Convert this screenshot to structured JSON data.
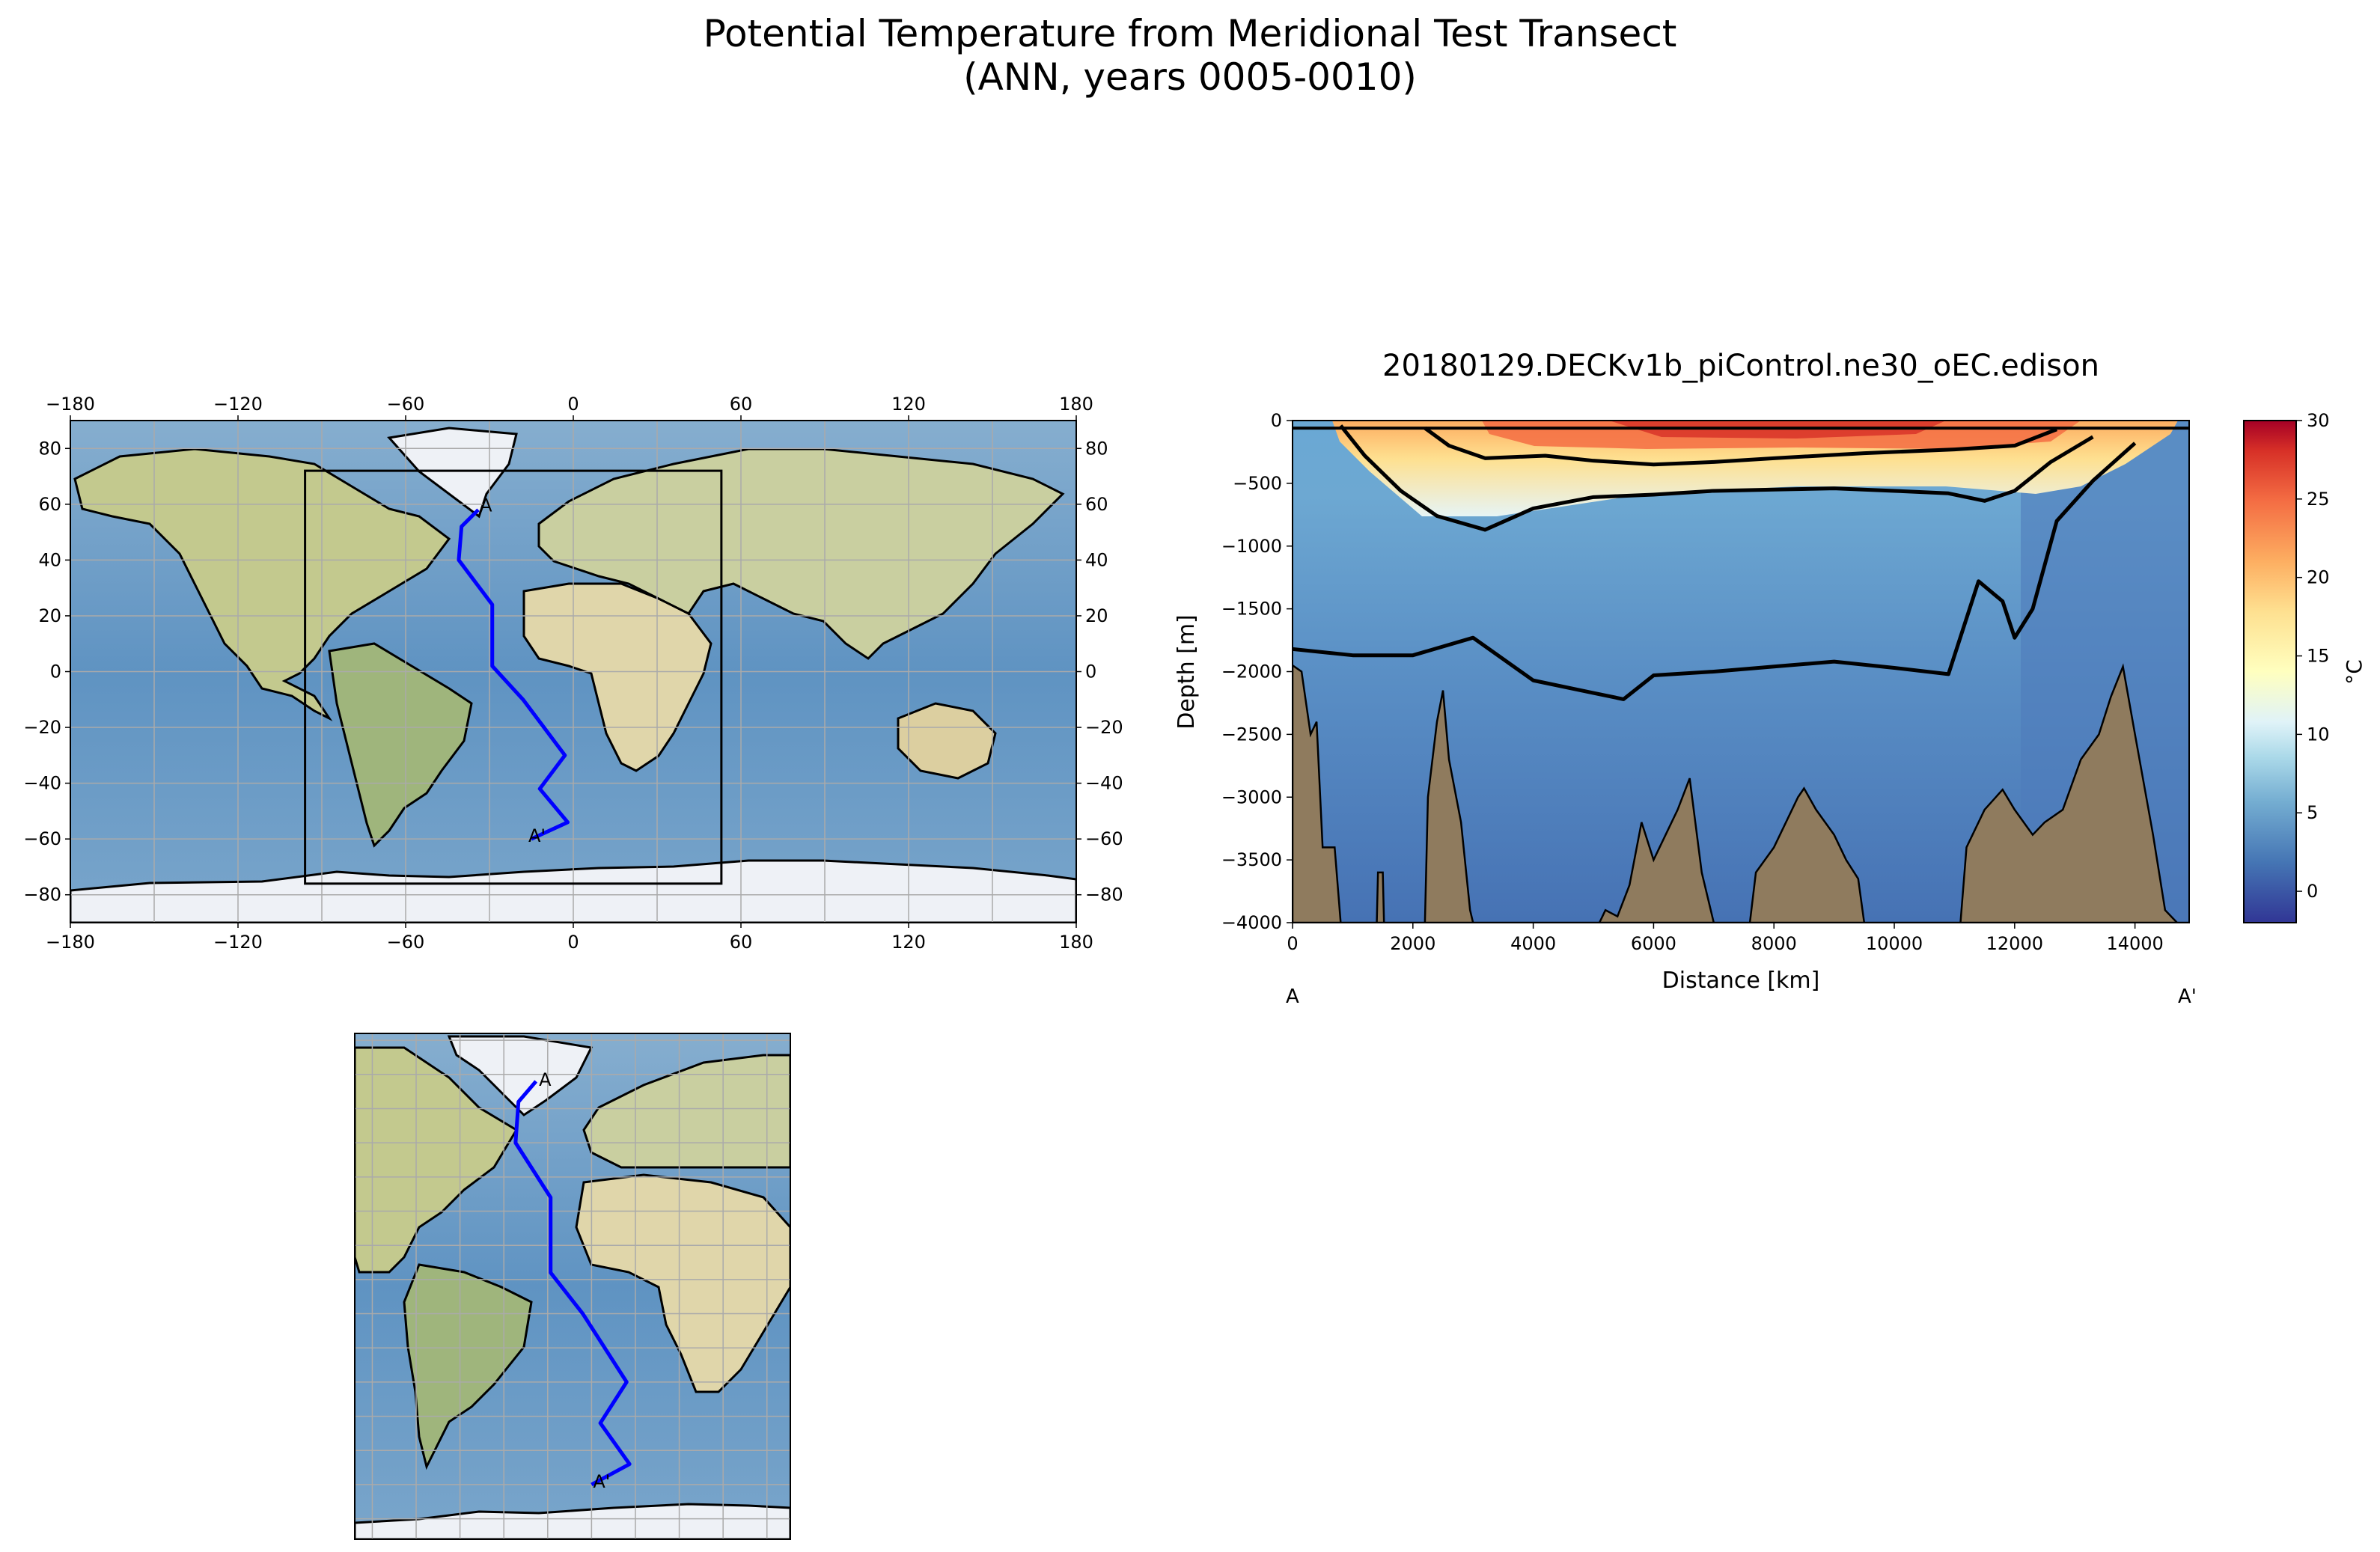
{
  "figure": {
    "title_line1": "Potential Temperature from Meridional Test Transect",
    "title_line2": "(ANN, years 0005-0010)"
  },
  "colors": {
    "ocean": "#6a9ac4",
    "ocean_light": "#a9c9e0",
    "land": "#c9cfa0",
    "land_green": "#9bb37a",
    "land_desert": "#e4d8ae",
    "ice": "#eef1f6",
    "transect": "#0000ff",
    "terrain": "#8f7b5e",
    "grid": "#aaaaaa",
    "contour": "#000000"
  },
  "chart_data": [
    {
      "type": "map",
      "name": "global-map",
      "projection": "PlateCarree",
      "xticks": [
        "−180",
        "−120",
        "−60",
        "0",
        "60",
        "120",
        "180"
      ],
      "yticks": [
        "80",
        "60",
        "40",
        "20",
        "0",
        "−20",
        "−40",
        "−60",
        "−80"
      ],
      "xlim": [
        -180,
        180
      ],
      "ylim": [
        -90,
        90
      ],
      "inset_box": {
        "lon": [
          -96,
          53
        ],
        "lat": [
          -76,
          72
        ]
      },
      "transect_lonlat": [
        [
          -34,
          58
        ],
        [
          -40,
          52
        ],
        [
          -41,
          40
        ],
        [
          -29,
          24
        ],
        [
          -29,
          2
        ],
        [
          -18,
          -10
        ],
        [
          -3,
          -30
        ],
        [
          -12,
          -42
        ],
        [
          -2,
          -54
        ],
        [
          -15,
          -60
        ]
      ],
      "labels": {
        "start": "A",
        "end": "A'"
      }
    },
    {
      "type": "map",
      "name": "regional-map",
      "projection": "PlateCarree",
      "xlim": [
        -96,
        53
      ],
      "ylim": [
        -76,
        72
      ],
      "transect_lonlat": [
        [
          -34,
          58
        ],
        [
          -40,
          52
        ],
        [
          -41,
          40
        ],
        [
          -29,
          24
        ],
        [
          -29,
          2
        ],
        [
          -18,
          -10
        ],
        [
          -3,
          -30
        ],
        [
          -12,
          -42
        ],
        [
          -2,
          -54
        ],
        [
          -15,
          -60
        ]
      ],
      "labels": {
        "start": "A",
        "end": "A'"
      }
    },
    {
      "type": "heatmap",
      "name": "transect-section",
      "title": "20180129.DECKv1b_piControl.ne30_oEC.edison",
      "xlabel": "Distance [km]",
      "ylabel": "Depth [m]",
      "xlim": [
        0,
        14900
      ],
      "ylim": [
        -4000,
        0
      ],
      "xticks": [
        "0",
        "2000",
        "4000",
        "6000",
        "8000",
        "10000",
        "12000",
        "14000"
      ],
      "yticks": [
        "0",
        "−500",
        "−1000",
        "−1500",
        "−2000",
        "−2500",
        "−3000",
        "−3500",
        "−4000"
      ],
      "endpoint_labels": {
        "start": "A",
        "end": "A'"
      },
      "colorbar": {
        "label": "°C",
        "range": [
          -2,
          30
        ],
        "ticks": [
          "30",
          "25",
          "20",
          "15",
          "10",
          "5",
          "0"
        ]
      },
      "contours_depth_m": {
        "deep_2C": [
          [
            0,
            -1820
          ],
          [
            1000,
            -1870
          ],
          [
            2000,
            -1870
          ],
          [
            3000,
            -1730
          ],
          [
            4000,
            -2070
          ],
          [
            5000,
            -2170
          ],
          [
            5500,
            -2220
          ],
          [
            6000,
            -2030
          ],
          [
            7000,
            -2000
          ],
          [
            8000,
            -1960
          ],
          [
            9000,
            -1920
          ],
          [
            10000,
            -1970
          ],
          [
            10900,
            -2020
          ],
          [
            11400,
            -1280
          ],
          [
            11800,
            -1440
          ],
          [
            12000,
            -1730
          ],
          [
            12300,
            -1500
          ],
          [
            12700,
            -800
          ],
          [
            13300,
            -480
          ],
          [
            14000,
            -180
          ]
        ],
        "mid_5C": [
          [
            800,
            -40
          ],
          [
            1200,
            -280
          ],
          [
            1800,
            -560
          ],
          [
            2400,
            -760
          ],
          [
            3200,
            -870
          ],
          [
            4000,
            -700
          ],
          [
            5000,
            -610
          ],
          [
            6000,
            -590
          ],
          [
            7000,
            -560
          ],
          [
            8000,
            -550
          ],
          [
            9000,
            -540
          ],
          [
            10000,
            -560
          ],
          [
            10900,
            -580
          ],
          [
            11500,
            -640
          ],
          [
            12000,
            -560
          ],
          [
            12600,
            -330
          ],
          [
            13300,
            -130
          ]
        ],
        "upper_10C": [
          [
            2200,
            -60
          ],
          [
            2600,
            -200
          ],
          [
            3200,
            -300
          ],
          [
            4200,
            -280
          ],
          [
            5000,
            -320
          ],
          [
            6000,
            -350
          ],
          [
            7000,
            -330
          ],
          [
            8000,
            -300
          ],
          [
            9500,
            -260
          ],
          [
            11000,
            -230
          ],
          [
            12000,
            -200
          ],
          [
            12700,
            -70
          ]
        ]
      },
      "terrain_peaks_km": [
        [
          0,
          -1950
        ],
        [
          400,
          -2400
        ],
        [
          2500,
          -2150
        ],
        [
          5400,
          -3950
        ],
        [
          6600,
          -2850
        ],
        [
          8500,
          -2930
        ],
        [
          11800,
          -2940
        ],
        [
          13800,
          -1960
        ]
      ]
    }
  ]
}
